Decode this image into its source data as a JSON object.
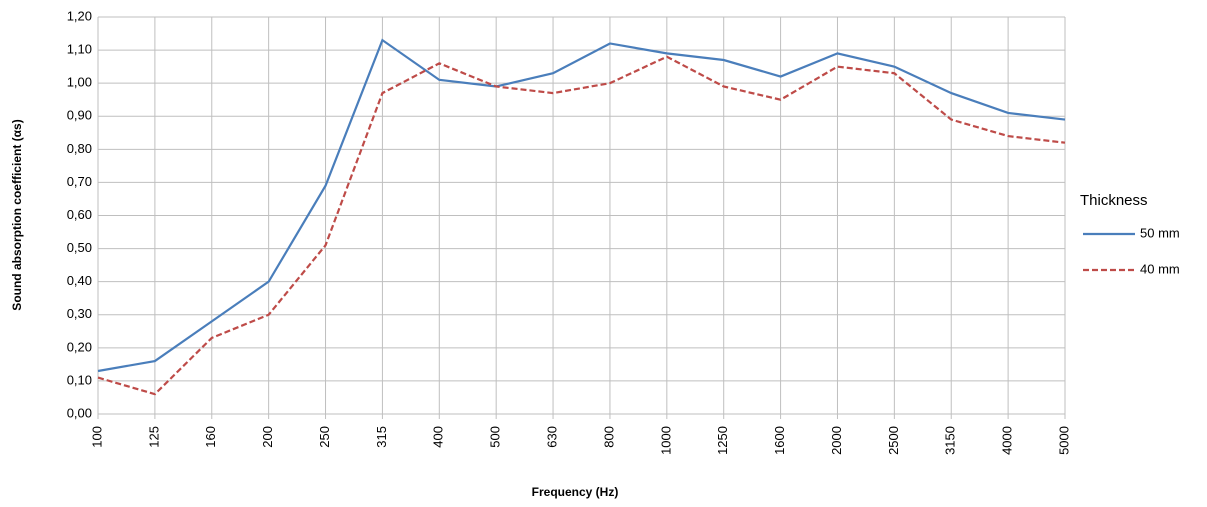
{
  "chart_data": {
    "type": "line",
    "x_label": "Frequency (Hz)",
    "y_label": "Sound  absorption coefficient (αs)",
    "legend_title": "Thickness",
    "legend": "right",
    "grid": true,
    "categories": [
      "100",
      "125",
      "160",
      "200",
      "250",
      "315",
      "400",
      "500",
      "630",
      "800",
      "1000",
      "1250",
      "1600",
      "2000",
      "2500",
      "3150",
      "4000",
      "5000"
    ],
    "series": [
      {
        "name": "50 mm",
        "color": "#4a7ebb",
        "dash": false,
        "values": [
          0.13,
          0.16,
          0.28,
          0.4,
          0.69,
          1.13,
          1.01,
          0.99,
          1.03,
          1.12,
          1.09,
          1.07,
          1.02,
          1.09,
          1.05,
          0.97,
          0.91,
          0.89
        ]
      },
      {
        "name": "40 mm",
        "color": "#be4b48",
        "dash": true,
        "values": [
          0.11,
          0.06,
          0.23,
          0.3,
          0.51,
          0.97,
          1.06,
          0.99,
          0.97,
          1.0,
          1.08,
          0.99,
          0.95,
          1.05,
          1.03,
          0.89,
          0.84,
          0.82
        ]
      }
    ],
    "ylim": [
      0,
      1.2
    ],
    "yticks": [
      {
        "value": 0,
        "label": "0,00"
      },
      {
        "value": 0.1,
        "label": "0,10"
      },
      {
        "value": 0.2,
        "label": "0,20"
      },
      {
        "value": 0.3,
        "label": "0,30"
      },
      {
        "value": 0.4,
        "label": "0,40"
      },
      {
        "value": 0.5,
        "label": "0,50"
      },
      {
        "value": 0.6,
        "label": "0,60"
      },
      {
        "value": 0.7,
        "label": "0,70"
      },
      {
        "value": 0.8,
        "label": "0,80"
      },
      {
        "value": 0.9,
        "label": "0,90"
      },
      {
        "value": 1.0,
        "label": "1,00"
      },
      {
        "value": 1.1,
        "label": "1,10"
      },
      {
        "value": 1.2,
        "label": "1,20"
      }
    ]
  }
}
